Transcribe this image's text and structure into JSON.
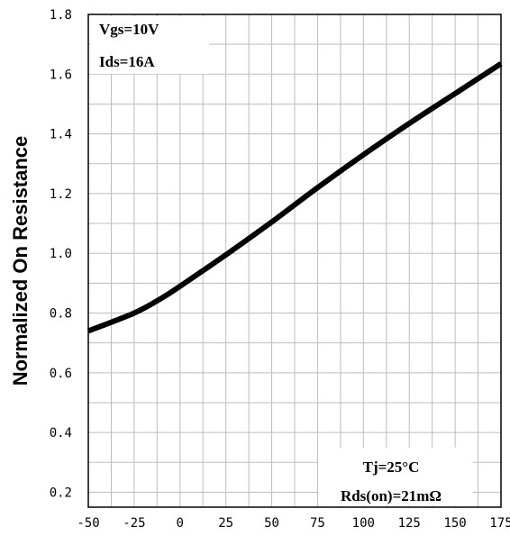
{
  "chart_data": {
    "type": "line",
    "title": "",
    "xlabel": "",
    "ylabel": "Normalized On Resistance",
    "xlim": [
      -50,
      175
    ],
    "ylim": [
      0.15,
      1.8
    ],
    "grid": true,
    "x_ticks": [
      -50,
      -25,
      0,
      25,
      50,
      75,
      100,
      125,
      150,
      175
    ],
    "x_tick_labels": [
      "-50",
      "-25",
      "0",
      "25",
      "50",
      "75",
      "100",
      "125",
      "150",
      "175"
    ],
    "y_ticks": [
      0.2,
      0.4,
      0.6,
      0.8,
      1.0,
      1.2,
      1.4,
      1.6,
      1.8
    ],
    "y_tick_labels": [
      "0.2",
      "0.4",
      "0.6",
      "0.8",
      "1.0",
      "1.2",
      "1.4",
      "1.6",
      "1.8"
    ],
    "series": [
      {
        "x": [
          -50,
          -25,
          -10,
          0,
          25,
          50,
          75,
          100,
          125,
          150,
          175
        ],
        "values": [
          0.74,
          0.8,
          0.85,
          0.89,
          0.995,
          1.105,
          1.22,
          1.33,
          1.435,
          1.535,
          1.635
        ]
      }
    ],
    "annotations": {
      "top_left": [
        "Vgs=10V",
        "Ids=16A"
      ],
      "bottom_right": [
        "Tj=25°C",
        "Rds(on)=21mΩ"
      ]
    },
    "line_color": "#000000"
  }
}
